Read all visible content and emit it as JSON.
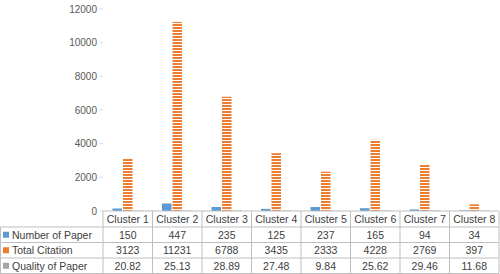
{
  "chart_data": {
    "type": "bar",
    "categories": [
      "Cluster 1",
      "Cluster 2",
      "Cluster 3",
      "Cluster 4",
      "Cluster 5",
      "Cluster 6",
      "Cluster 7",
      "Cluster 8"
    ],
    "series": [
      {
        "name": "Number of Paper",
        "color": "#5b9bd5",
        "values": [
          150,
          447,
          235,
          125,
          237,
          165,
          94,
          34
        ]
      },
      {
        "name": "Total Citation",
        "color": "#ed7d31",
        "values": [
          3123,
          11231,
          6788,
          3435,
          2333,
          4228,
          2769,
          397
        ]
      },
      {
        "name": "Quality of Paper",
        "color": "#a5a5a5",
        "values": [
          20.82,
          25.13,
          28.89,
          27.48,
          9.84,
          25.62,
          29.46,
          11.68
        ]
      }
    ],
    "ylim": [
      0,
      12000
    ],
    "yticks": [
      0,
      2000,
      4000,
      6000,
      8000,
      10000,
      12000
    ],
    "grid": false
  }
}
